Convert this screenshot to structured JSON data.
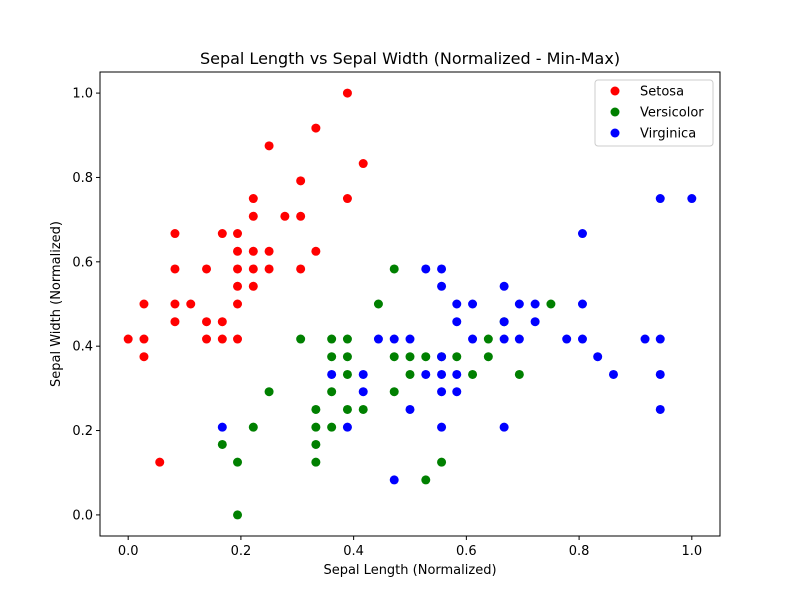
{
  "chart_data": {
    "type": "scatter",
    "title": "Sepal Length vs Sepal Width (Normalized - Min-Max)",
    "xlabel": "Sepal Length (Normalized)",
    "ylabel": "Sepal Width (Normalized)",
    "xlim": [
      -0.05,
      1.05
    ],
    "ylim": [
      -0.05,
      1.05
    ],
    "xticks": [
      0.0,
      0.2,
      0.4,
      0.6,
      0.8,
      1.0
    ],
    "yticks": [
      0.0,
      0.2,
      0.4,
      0.6,
      0.8,
      1.0
    ],
    "xtick_labels": [
      "0.0",
      "0.2",
      "0.4",
      "0.6",
      "0.8",
      "1.0"
    ],
    "ytick_labels": [
      "0.0",
      "0.2",
      "0.4",
      "0.6",
      "0.8",
      "1.0"
    ],
    "grid": false,
    "legend_position": "top-right",
    "series": [
      {
        "name": "Setosa",
        "color": "#ff0000",
        "points": [
          [
            0.0,
            0.417
          ],
          [
            0.028,
            0.5
          ],
          [
            0.028,
            0.417
          ],
          [
            0.028,
            0.375
          ],
          [
            0.056,
            0.125
          ],
          [
            0.083,
            0.667
          ],
          [
            0.083,
            0.583
          ],
          [
            0.083,
            0.5
          ],
          [
            0.083,
            0.458
          ],
          [
            0.111,
            0.5
          ],
          [
            0.139,
            0.583
          ],
          [
            0.139,
            0.458
          ],
          [
            0.139,
            0.417
          ],
          [
            0.167,
            0.667
          ],
          [
            0.167,
            0.458
          ],
          [
            0.167,
            0.417
          ],
          [
            0.194,
            0.667
          ],
          [
            0.194,
            0.625
          ],
          [
            0.194,
            0.583
          ],
          [
            0.194,
            0.542
          ],
          [
            0.194,
            0.5
          ],
          [
            0.194,
            0.417
          ],
          [
            0.222,
            0.75
          ],
          [
            0.222,
            0.708
          ],
          [
            0.222,
            0.625
          ],
          [
            0.222,
            0.583
          ],
          [
            0.222,
            0.542
          ],
          [
            0.25,
            0.875
          ],
          [
            0.25,
            0.625
          ],
          [
            0.25,
            0.583
          ],
          [
            0.278,
            0.708
          ],
          [
            0.306,
            0.792
          ],
          [
            0.306,
            0.708
          ],
          [
            0.306,
            0.583
          ],
          [
            0.333,
            0.917
          ],
          [
            0.333,
            0.625
          ],
          [
            0.389,
            1.0
          ],
          [
            0.389,
            0.75
          ],
          [
            0.417,
            0.833
          ]
        ]
      },
      {
        "name": "Versicolor",
        "color": "#008000",
        "points": [
          [
            0.167,
            0.167
          ],
          [
            0.194,
            0.125
          ],
          [
            0.194,
            0.0
          ],
          [
            0.222,
            0.208
          ],
          [
            0.25,
            0.292
          ],
          [
            0.306,
            0.417
          ],
          [
            0.333,
            0.25
          ],
          [
            0.333,
            0.208
          ],
          [
            0.333,
            0.167
          ],
          [
            0.333,
            0.125
          ],
          [
            0.361,
            0.417
          ],
          [
            0.361,
            0.375
          ],
          [
            0.361,
            0.292
          ],
          [
            0.361,
            0.208
          ],
          [
            0.389,
            0.417
          ],
          [
            0.389,
            0.375
          ],
          [
            0.389,
            0.333
          ],
          [
            0.389,
            0.25
          ],
          [
            0.417,
            0.25
          ],
          [
            0.444,
            0.5
          ],
          [
            0.472,
            0.583
          ],
          [
            0.472,
            0.375
          ],
          [
            0.472,
            0.292
          ],
          [
            0.5,
            0.375
          ],
          [
            0.5,
            0.333
          ],
          [
            0.528,
            0.375
          ],
          [
            0.528,
            0.083
          ],
          [
            0.556,
            0.375
          ],
          [
            0.556,
            0.125
          ],
          [
            0.583,
            0.375
          ],
          [
            0.611,
            0.333
          ],
          [
            0.639,
            0.417
          ],
          [
            0.639,
            0.375
          ],
          [
            0.667,
            0.458
          ],
          [
            0.694,
            0.333
          ],
          [
            0.75,
            0.5
          ]
        ]
      },
      {
        "name": "Virginica",
        "color": "#0000ff",
        "points": [
          [
            0.167,
            0.208
          ],
          [
            0.361,
            0.333
          ],
          [
            0.389,
            0.208
          ],
          [
            0.417,
            0.333
          ],
          [
            0.417,
            0.292
          ],
          [
            0.444,
            0.417
          ],
          [
            0.472,
            0.417
          ],
          [
            0.472,
            0.083
          ],
          [
            0.5,
            0.417
          ],
          [
            0.5,
            0.25
          ],
          [
            0.528,
            0.583
          ],
          [
            0.528,
            0.333
          ],
          [
            0.556,
            0.583
          ],
          [
            0.556,
            0.542
          ],
          [
            0.556,
            0.375
          ],
          [
            0.556,
            0.333
          ],
          [
            0.556,
            0.292
          ],
          [
            0.556,
            0.208
          ],
          [
            0.583,
            0.5
          ],
          [
            0.583,
            0.458
          ],
          [
            0.583,
            0.333
          ],
          [
            0.583,
            0.292
          ],
          [
            0.611,
            0.5
          ],
          [
            0.611,
            0.417
          ],
          [
            0.667,
            0.542
          ],
          [
            0.667,
            0.458
          ],
          [
            0.667,
            0.417
          ],
          [
            0.667,
            0.208
          ],
          [
            0.694,
            0.5
          ],
          [
            0.694,
            0.417
          ],
          [
            0.722,
            0.5
          ],
          [
            0.722,
            0.458
          ],
          [
            0.778,
            0.417
          ],
          [
            0.806,
            0.667
          ],
          [
            0.806,
            0.5
          ],
          [
            0.806,
            0.417
          ],
          [
            0.833,
            0.375
          ],
          [
            0.861,
            0.333
          ],
          [
            0.917,
            0.417
          ],
          [
            0.944,
            0.75
          ],
          [
            0.944,
            0.417
          ],
          [
            0.944,
            0.333
          ],
          [
            0.944,
            0.25
          ],
          [
            1.0,
            0.75
          ]
        ]
      }
    ]
  }
}
